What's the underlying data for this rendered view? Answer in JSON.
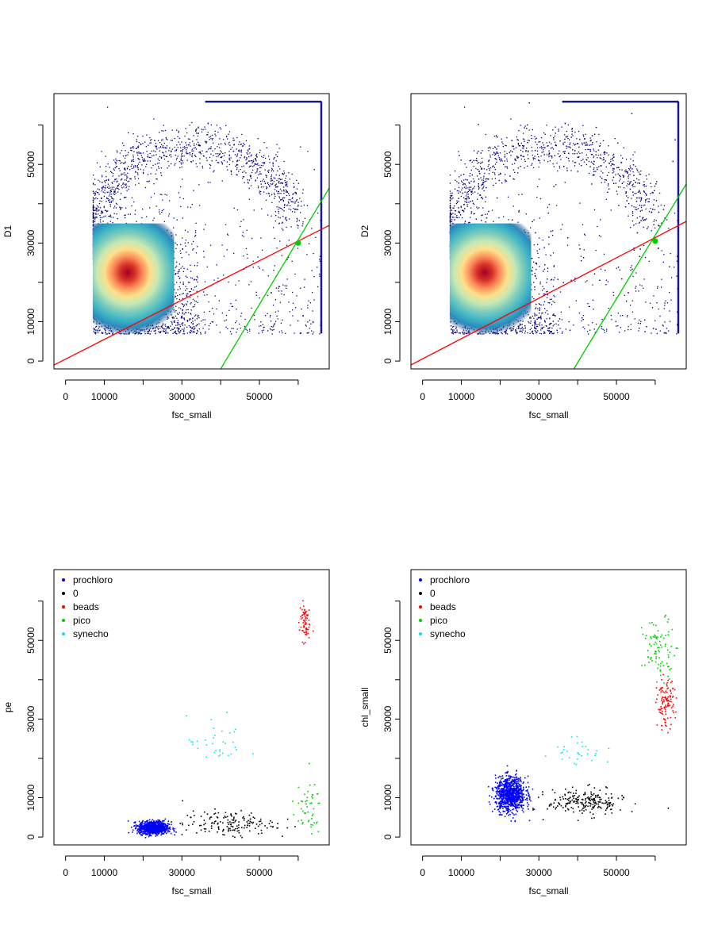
{
  "figure": {
    "type": "scatter",
    "panel_count": 4,
    "layout": "2x2"
  },
  "chart_data": [
    {
      "type": "scatter",
      "title": "",
      "xlabel": "fsc_small",
      "ylabel": "D1",
      "xlim": [
        -3000,
        68000
      ],
      "ylim": [
        -2000,
        68000
      ],
      "x_ticks": [
        0,
        10000,
        30000,
        50000
      ],
      "y_ticks": [
        0,
        10000,
        30000,
        50000
      ],
      "density_colormap": [
        "#08306b",
        "#2b8cbe",
        "#41b6c4",
        "#7fcdbb",
        "#c7e9b4",
        "#fee08b",
        "#fc8d59",
        "#d73027",
        "#a50026"
      ],
      "density_regions": [
        {
          "level": "background",
          "x_range": [
            7000,
            66000
          ],
          "y_range": [
            7000,
            66000
          ],
          "color": "#00007f"
        },
        {
          "level": "core",
          "center": [
            10500,
            22500
          ],
          "spread": [
            3500,
            5000
          ],
          "color": "#a50026"
        }
      ],
      "lines": [
        {
          "name": "red",
          "color": "#ff0000",
          "points": [
            [
              -3000,
              -1000
            ],
            [
              68000,
              34500
            ]
          ]
        },
        {
          "name": "green",
          "color": "#00cc00",
          "points": [
            [
              40000,
              -2000
            ],
            [
              68000,
              44000
            ]
          ]
        }
      ],
      "marker": {
        "color": "#00cc00",
        "x": 60000,
        "y": 30000
      }
    },
    {
      "type": "scatter",
      "title": "",
      "xlabel": "fsc_small",
      "ylabel": "D2",
      "xlim": [
        -3000,
        68000
      ],
      "ylim": [
        -2000,
        68000
      ],
      "x_ticks": [
        0,
        10000,
        30000,
        50000
      ],
      "y_ticks": [
        0,
        10000,
        30000,
        50000
      ],
      "density_colormap": [
        "#08306b",
        "#2b8cbe",
        "#41b6c4",
        "#7fcdbb",
        "#c7e9b4",
        "#fee08b",
        "#fc8d59",
        "#d73027",
        "#a50026"
      ],
      "density_regions": [
        {
          "level": "background",
          "x_range": [
            7000,
            66000
          ],
          "y_range": [
            7000,
            66000
          ],
          "color": "#00007f"
        },
        {
          "level": "core",
          "center": [
            10500,
            22500
          ],
          "spread": [
            3500,
            5000
          ],
          "color": "#a50026"
        }
      ],
      "lines": [
        {
          "name": "red",
          "color": "#ff0000",
          "points": [
            [
              -3000,
              -1000
            ],
            [
              68000,
              35500
            ]
          ]
        },
        {
          "name": "green",
          "color": "#00cc00",
          "points": [
            [
              39000,
              -2000
            ],
            [
              68000,
              45000
            ]
          ]
        }
      ],
      "marker": {
        "color": "#00cc00",
        "x": 60000,
        "y": 30500
      }
    },
    {
      "type": "scatter",
      "title": "",
      "xlabel": "fsc_small",
      "ylabel": "pe",
      "xlim": [
        -3000,
        68000
      ],
      "ylim": [
        -2000,
        68000
      ],
      "x_ticks": [
        0,
        10000,
        30000,
        50000
      ],
      "y_ticks": [
        0,
        10000,
        30000,
        50000
      ],
      "legend": {
        "placement": "top-left",
        "entries": [
          {
            "label": "prochloro",
            "color": "#0000ff"
          },
          {
            "label": "0",
            "color": "#000000"
          },
          {
            "label": "beads",
            "color": "#ff0000"
          },
          {
            "label": "pico",
            "color": "#00cc00"
          },
          {
            "label": "synecho",
            "color": "#00e5ee"
          }
        ]
      },
      "clusters": [
        {
          "series": "prochloro",
          "color": "#0000ff",
          "count": 900,
          "center": [
            22500,
            2500
          ],
          "spread": [
            3500,
            1500
          ]
        },
        {
          "series": "0",
          "color": "#000000",
          "count": 160,
          "center": [
            42000,
            3500
          ],
          "spread": [
            11000,
            3000
          ]
        },
        {
          "series": "beads",
          "color": "#ff0000",
          "count": 70,
          "center": [
            61500,
            55000
          ],
          "spread": [
            1200,
            4500
          ]
        },
        {
          "series": "pico",
          "color": "#00cc00",
          "count": 50,
          "center": [
            62000,
            7000
          ],
          "spread": [
            3500,
            6000
          ]
        },
        {
          "series": "synecho",
          "color": "#00e5ee",
          "count": 35,
          "center": [
            39000,
            24000
          ],
          "spread": [
            7000,
            6000
          ]
        }
      ]
    },
    {
      "type": "scatter",
      "title": "",
      "xlabel": "fsc_small",
      "ylabel": "chl_small",
      "xlim": [
        -3000,
        68000
      ],
      "ylim": [
        -2000,
        68000
      ],
      "x_ticks": [
        0,
        10000,
        30000,
        50000
      ],
      "y_ticks": [
        0,
        10000,
        30000,
        50000
      ],
      "legend": {
        "placement": "top-left",
        "entries": [
          {
            "label": "prochloro",
            "color": "#0000ff"
          },
          {
            "label": "0",
            "color": "#000000"
          },
          {
            "label": "beads",
            "color": "#ff0000"
          },
          {
            "label": "pico",
            "color": "#00cc00"
          },
          {
            "label": "synecho",
            "color": "#00e5ee"
          }
        ]
      },
      "clusters": [
        {
          "series": "prochloro",
          "color": "#0000ff",
          "count": 900,
          "center": [
            22500,
            11000
          ],
          "spread": [
            3500,
            4000
          ]
        },
        {
          "series": "0",
          "color": "#000000",
          "count": 220,
          "center": [
            42000,
            9000
          ],
          "spread": [
            9000,
            3000
          ]
        },
        {
          "series": "beads",
          "color": "#ff0000",
          "count": 110,
          "center": [
            62500,
            34000
          ],
          "spread": [
            2000,
            5500
          ]
        },
        {
          "series": "pico",
          "color": "#00cc00",
          "count": 90,
          "center": [
            61000,
            48000
          ],
          "spread": [
            4000,
            7000
          ]
        },
        {
          "series": "synecho",
          "color": "#00e5ee",
          "count": 30,
          "center": [
            40000,
            22000
          ],
          "spread": [
            6000,
            3500
          ]
        }
      ]
    }
  ]
}
